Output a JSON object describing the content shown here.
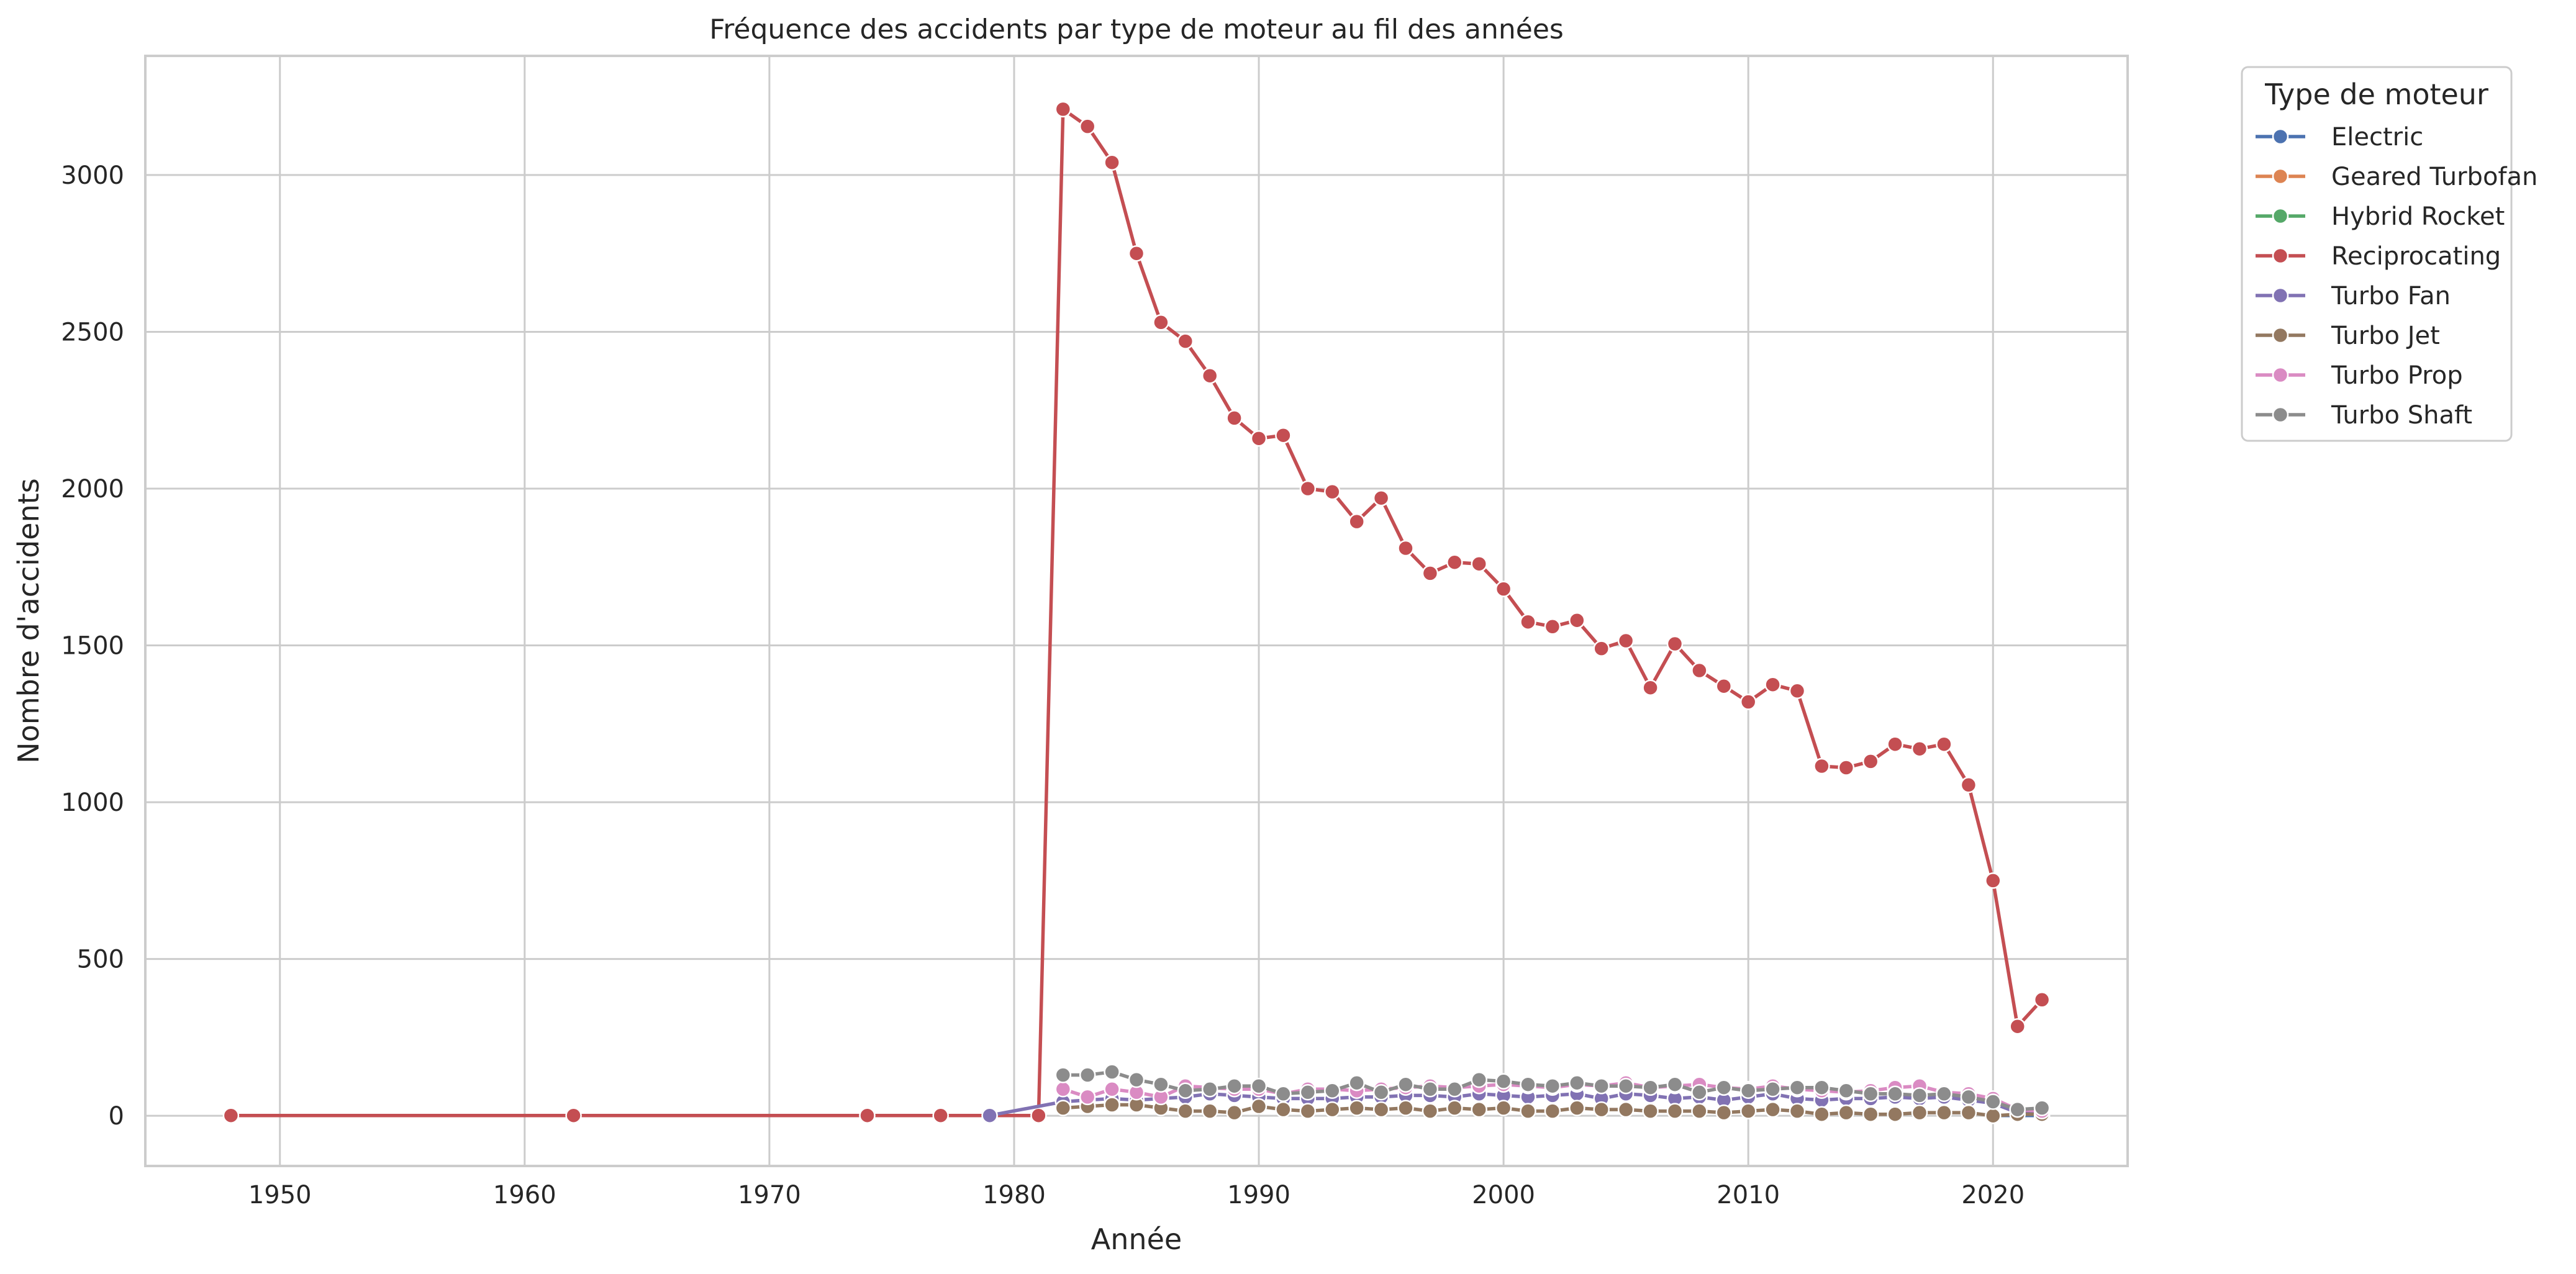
{
  "chart_data": {
    "type": "line",
    "title": "Fréquence des accidents par type de moteur au fil des années",
    "xlabel": "Année",
    "ylabel": "Nombre d'accidents",
    "xlim": [
      1944.5,
      2025.5
    ],
    "ylim": [
      -160,
      3380
    ],
    "xticks": [
      1950,
      1960,
      1970,
      1980,
      1990,
      2000,
      2010,
      2020
    ],
    "yticks": [
      0,
      500,
      1000,
      1500,
      2000,
      2500,
      3000
    ],
    "grid": true,
    "legend": {
      "title": "Type de moteur",
      "placement": "outside-top-right"
    },
    "series": [
      {
        "name": "Electric",
        "color": "#4c72b0",
        "x": [
          2020,
          2022
        ],
        "y": [
          1,
          1
        ]
      },
      {
        "name": "Geared Turbofan",
        "color": "#dd8452",
        "x": [
          2022
        ],
        "y": [
          1
        ]
      },
      {
        "name": "Hybrid Rocket",
        "color": "#55a868",
        "x": [
          2022
        ],
        "y": [
          1
        ]
      },
      {
        "name": "Reciprocating",
        "color": "#c44e52",
        "x": [
          1948,
          1962,
          1974,
          1977,
          1979,
          1981,
          1982,
          1983,
          1984,
          1985,
          1986,
          1987,
          1988,
          1989,
          1990,
          1991,
          1992,
          1993,
          1994,
          1995,
          1996,
          1997,
          1998,
          1999,
          2000,
          2001,
          2002,
          2003,
          2004,
          2005,
          2006,
          2007,
          2008,
          2009,
          2010,
          2011,
          2012,
          2013,
          2014,
          2015,
          2016,
          2017,
          2018,
          2019,
          2020,
          2021,
          2022
        ],
        "y": [
          1,
          1,
          1,
          1,
          1,
          1,
          3210,
          3155,
          3040,
          2750,
          2530,
          2470,
          2360,
          2225,
          2160,
          2170,
          2000,
          1990,
          1895,
          1970,
          1810,
          1730,
          1765,
          1760,
          1680,
          1575,
          1560,
          1580,
          1490,
          1515,
          1365,
          1505,
          1420,
          1370,
          1320,
          1375,
          1355,
          1115,
          1110,
          1130,
          1185,
          1170,
          1185,
          1055,
          750,
          285,
          370
        ]
      },
      {
        "name": "Turbo Fan",
        "color": "#8172b3",
        "x": [
          1979,
          1982,
          1983,
          1984,
          1985,
          1986,
          1987,
          1988,
          1989,
          1990,
          1991,
          1992,
          1993,
          1994,
          1995,
          1996,
          1997,
          1998,
          1999,
          2000,
          2001,
          2002,
          2003,
          2004,
          2005,
          2006,
          2007,
          2008,
          2009,
          2010,
          2011,
          2012,
          2013,
          2014,
          2015,
          2016,
          2017,
          2018,
          2019,
          2020,
          2021,
          2022
        ],
        "y": [
          1,
          45,
          50,
          55,
          50,
          55,
          60,
          70,
          65,
          60,
          55,
          55,
          55,
          60,
          60,
          65,
          65,
          60,
          70,
          65,
          60,
          65,
          70,
          55,
          70,
          65,
          55,
          60,
          50,
          60,
          70,
          55,
          50,
          55,
          55,
          60,
          55,
          60,
          50,
          40,
          10,
          15
        ]
      },
      {
        "name": "Turbo Jet",
        "color": "#937860",
        "x": [
          1982,
          1983,
          1984,
          1985,
          1986,
          1987,
          1988,
          1989,
          1990,
          1991,
          1992,
          1993,
          1994,
          1995,
          1996,
          1997,
          1998,
          1999,
          2000,
          2001,
          2002,
          2003,
          2004,
          2005,
          2006,
          2007,
          2008,
          2009,
          2010,
          2011,
          2012,
          2013,
          2014,
          2015,
          2016,
          2017,
          2018,
          2019,
          2020,
          2021,
          2022
        ],
        "y": [
          25,
          30,
          35,
          35,
          25,
          15,
          15,
          10,
          30,
          20,
          15,
          20,
          25,
          20,
          25,
          15,
          25,
          20,
          25,
          15,
          15,
          25,
          20,
          20,
          15,
          15,
          15,
          10,
          15,
          20,
          15,
          5,
          10,
          5,
          5,
          10,
          10,
          10,
          0,
          5,
          5
        ]
      },
      {
        "name": "Turbo Prop",
        "color": "#da8bc3",
        "x": [
          1982,
          1983,
          1984,
          1985,
          1986,
          1987,
          1988,
          1989,
          1990,
          1991,
          1992,
          1993,
          1994,
          1995,
          1996,
          1997,
          1998,
          1999,
          2000,
          2001,
          2002,
          2003,
          2004,
          2005,
          2006,
          2007,
          2008,
          2009,
          2010,
          2011,
          2012,
          2013,
          2014,
          2015,
          2016,
          2017,
          2018,
          2019,
          2020,
          2021,
          2022
        ],
        "y": [
          85,
          60,
          85,
          75,
          60,
          95,
          90,
          85,
          85,
          70,
          85,
          85,
          80,
          85,
          90,
          95,
          90,
          95,
          100,
          95,
          90,
          100,
          95,
          105,
          90,
          95,
          100,
          90,
          85,
          95,
          85,
          80,
          75,
          80,
          90,
          95,
          75,
          70,
          55,
          20,
          15
        ]
      },
      {
        "name": "Turbo Shaft",
        "color": "#8c8c8c",
        "x": [
          1982,
          1983,
          1984,
          1985,
          1986,
          1987,
          1988,
          1989,
          1990,
          1991,
          1992,
          1993,
          1994,
          1995,
          1996,
          1997,
          1998,
          1999,
          2000,
          2001,
          2002,
          2003,
          2004,
          2005,
          2006,
          2007,
          2008,
          2009,
          2010,
          2011,
          2012,
          2013,
          2014,
          2015,
          2016,
          2017,
          2018,
          2019,
          2020,
          2021,
          2022
        ],
        "y": [
          130,
          130,
          140,
          115,
          100,
          80,
          85,
          95,
          95,
          70,
          75,
          80,
          105,
          75,
          100,
          85,
          85,
          115,
          110,
          100,
          95,
          105,
          95,
          95,
          90,
          100,
          75,
          90,
          80,
          85,
          90,
          90,
          80,
          70,
          70,
          65,
          70,
          60,
          45,
          20,
          25
        ]
      }
    ]
  }
}
